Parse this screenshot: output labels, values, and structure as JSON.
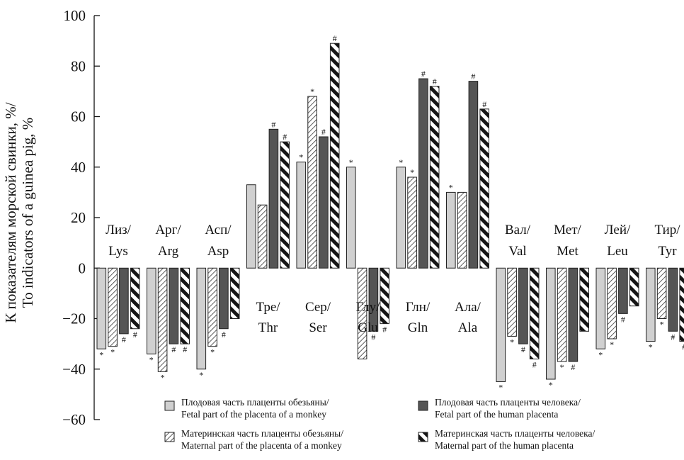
{
  "chart_data": {
    "type": "bar",
    "ylabel_lines": [
      "К показателям морской свинки, %/",
      "To indicators of a guinea pig, %"
    ],
    "ylim": [
      -60,
      100
    ],
    "yticks": [
      -60,
      -40,
      -20,
      0,
      20,
      40,
      60,
      80,
      100
    ],
    "ytick_labels": [
      "−60",
      "−40",
      "−20",
      "0",
      "20",
      "40",
      "60",
      "80",
      "100"
    ],
    "grid": false,
    "legend_position": "bottom",
    "categories": [
      {
        "ru": "Лиз/",
        "en": "Lys"
      },
      {
        "ru": "Арг/",
        "en": "Arg"
      },
      {
        "ru": "Асп/",
        "en": "Asp"
      },
      {
        "ru": "Тре/",
        "en": "Thr"
      },
      {
        "ru": "Сер/",
        "en": "Ser"
      },
      {
        "ru": "Глу/",
        "en": "Glu"
      },
      {
        "ru": "Глн/",
        "en": "Gln"
      },
      {
        "ru": "Ала/",
        "en": "Ala"
      },
      {
        "ru": "Вал/",
        "en": "Val"
      },
      {
        "ru": "Мет/",
        "en": "Met"
      },
      {
        "ru": "Лей/",
        "en": "Leu"
      },
      {
        "ru": "Тир/",
        "en": "Tyr"
      }
    ],
    "series": [
      {
        "name_ru": "Плодовая часть плаценты обезьяны/",
        "name_en": "Fetal part of the placenta of a monkey",
        "pattern": "light-gray",
        "values": [
          -32,
          -34,
          -40,
          33,
          42,
          40,
          40,
          30,
          -45,
          -44,
          -32,
          -29
        ],
        "marks": [
          "*",
          "*",
          "*",
          "",
          "*",
          "*",
          "*",
          "*",
          "*",
          "*",
          "*",
          "*"
        ]
      },
      {
        "name_ru": "Материнская часть плаценты обезьяны/",
        "name_en": "Maternal part of the placenta of a monkey",
        "pattern": "diagonal-hatch",
        "values": [
          -31,
          -41,
          -31,
          25,
          68,
          -36,
          36,
          30,
          -27,
          -37,
          -28,
          -20
        ],
        "marks": [
          "*",
          "*",
          "*",
          "",
          "*",
          "",
          "*",
          "",
          "*",
          "*",
          "*",
          "*"
        ]
      },
      {
        "name_ru": "Плодовая часть плаценты человека/",
        "name_en": "Fetal part of the human placenta",
        "pattern": "dark-gray",
        "values": [
          -26,
          -30,
          -24,
          55,
          52,
          -25,
          75,
          74,
          -30,
          -37,
          -18,
          -25
        ],
        "marks": [
          "#",
          "#",
          "#",
          "#",
          "#",
          "#",
          "#",
          "#",
          "#",
          "#",
          "#",
          "#"
        ]
      },
      {
        "name_ru": "Материнская часть плаценты человека/",
        "name_en": "Maternal part of the human placenta",
        "pattern": "thick-diagonal-stripes",
        "values": [
          -24,
          -30,
          -20,
          50,
          89,
          -22,
          72,
          63,
          -36,
          -25,
          -15,
          -29
        ],
        "marks": [
          "#",
          "#",
          "",
          "#",
          "#",
          "#",
          "#",
          "#",
          "#",
          "",
          "",
          "#"
        ]
      }
    ],
    "colors": {
      "light_gray": "#d0d0d0",
      "dark_gray": "#555555",
      "stroke": "#222222"
    }
  }
}
